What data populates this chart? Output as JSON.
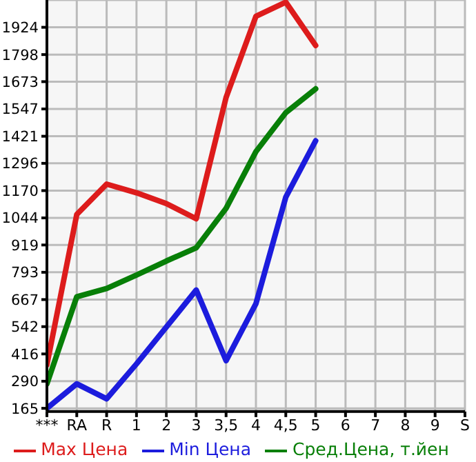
{
  "chart_data": {
    "type": "line",
    "categories": [
      "***",
      "RA",
      "R",
      "1",
      "2",
      "3",
      "3,5",
      "4",
      "4,5",
      "5",
      "6",
      "7",
      "8",
      "9",
      "S"
    ],
    "series": [
      {
        "name": "Max Цена",
        "color": "#dd1c1c",
        "values": [
          366,
          1060,
          1200,
          1160,
          1110,
          1040,
          1600,
          1975,
          2040,
          1840,
          null,
          null,
          null,
          null,
          null
        ]
      },
      {
        "name": "Min Цена",
        "color": "#1c1cdd",
        "values": [
          165,
          278,
          209,
          370,
          540,
          711,
          385,
          648,
          1140,
          1400,
          null,
          null,
          null,
          null,
          null
        ]
      },
      {
        "name": "Сред.Цена, т.йен",
        "color": "#087f08",
        "values": [
          278,
          680,
          718,
          780,
          845,
          906,
          1088,
          1350,
          1530,
          1640,
          null,
          null,
          null,
          null,
          null
        ]
      }
    ],
    "ylim": [
      150,
      2050
    ],
    "yticks": [
      165,
      290,
      416,
      542,
      667,
      793,
      919,
      1044,
      1170,
      1296,
      1421,
      1547,
      1673,
      1798,
      1924
    ],
    "grid": true,
    "legend": "bottom",
    "marker": "none",
    "line_style": "solid"
  }
}
